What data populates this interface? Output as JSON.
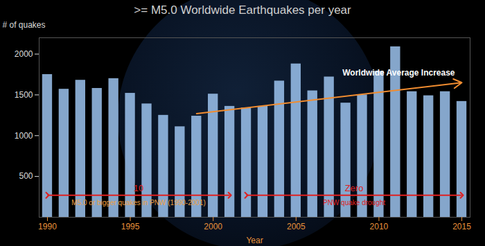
{
  "chart_data": {
    "type": "bar",
    "title": ">= M5.0 Worldwide Earthquakes per year",
    "y_label": "# of quakes",
    "x_label": "Year",
    "x": [
      1990,
      1991,
      1992,
      1993,
      1994,
      1995,
      1996,
      1997,
      1998,
      1999,
      2000,
      2001,
      2002,
      2003,
      2004,
      2005,
      2006,
      2007,
      2008,
      2009,
      2010,
      2011,
      2012,
      2013,
      2014,
      2015
    ],
    "values": [
      1750,
      1570,
      1680,
      1580,
      1700,
      1520,
      1390,
      1250,
      1110,
      1240,
      1510,
      1360,
      1340,
      1360,
      1670,
      1880,
      1550,
      1720,
      1400,
      1500,
      1790,
      2090,
      1540,
      1490,
      1540,
      1420
    ],
    "color": "#9cc3ef",
    "xlim": [
      1989.5,
      2015.5
    ],
    "xticks": [
      1990,
      1995,
      2000,
      2005,
      2010,
      2015
    ],
    "ylim": [
      0,
      2200
    ],
    "yticks": [
      500,
      1000,
      1500,
      2000
    ],
    "trend": {
      "label": "Worldwide Average Increase",
      "color": "#f08c30",
      "x": [
        1999,
        2015
      ],
      "y": [
        1270,
        1650
      ]
    },
    "periods": [
      {
        "label": "10",
        "sublabel": "M5.0 or bigger quakes in PNW (1990-2001)",
        "color": "#e02020",
        "sublabel_color": "#f0a040",
        "x": [
          1990,
          2001
        ],
        "y": 270
      },
      {
        "label": "Zero",
        "sublabel": "PNW quake drought",
        "color": "#e02020",
        "sublabel_color": "#e02020",
        "x": [
          2002,
          2015
        ],
        "y": 270
      }
    ]
  }
}
